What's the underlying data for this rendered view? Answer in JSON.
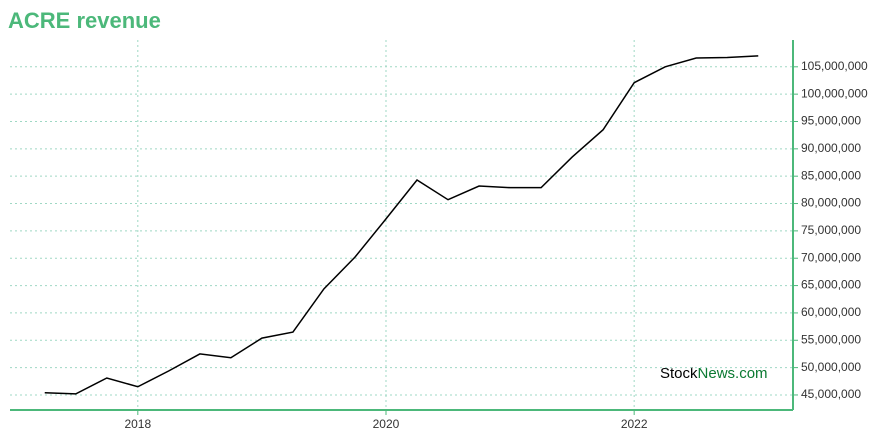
{
  "chart_data": {
    "type": "line",
    "title": "ACRE revenue",
    "watermark": [
      "Stock",
      "News.com"
    ],
    "x": [
      2017.25,
      2017.5,
      2017.75,
      2018,
      2018.25,
      2018.5,
      2018.75,
      2019,
      2019.25,
      2019.5,
      2019.75,
      2020,
      2020.25,
      2020.5,
      2020.75,
      2021,
      2021.25,
      2021.5,
      2021.75,
      2022,
      2022.25,
      2022.5,
      2022.75,
      2023
    ],
    "series": [
      {
        "color": "#000000",
        "values": [
          45400000,
          45200000,
          48100000,
          46500000,
          49400000,
          52500000,
          51800000,
          55400000,
          56500000,
          64400000,
          70200000,
          77200000,
          84300000,
          80700000,
          83200000,
          82900000,
          82900000,
          88500000,
          93500000,
          102100000,
          105000000,
          106600000,
          106700000,
          107000000
        ]
      }
    ],
    "xlim": [
      2016.97,
      2023.28
    ],
    "xticks": [
      2018,
      2020,
      2022
    ],
    "ylim": [
      42250000,
      109900000
    ],
    "yticks": [
      {
        "value": 45000000,
        "label": "45,000,000"
      },
      {
        "value": 50000000,
        "label": "50,000,000"
      },
      {
        "value": 55000000,
        "label": "55,000,000"
      },
      {
        "value": 60000000,
        "label": "60,000,000"
      },
      {
        "value": 65000000,
        "label": "65,000,000"
      },
      {
        "value": 70000000,
        "label": "70,000,000"
      },
      {
        "value": 75000000,
        "label": "75,000,000"
      },
      {
        "value": 80000000,
        "label": "80,000,000"
      },
      {
        "value": 85000000,
        "label": "85,000,000"
      },
      {
        "value": 90000000,
        "label": "90,000,000"
      },
      {
        "value": 95000000,
        "label": "95,000,000"
      },
      {
        "value": 100000000,
        "label": "100,000,000"
      },
      {
        "value": 105000000,
        "label": "105,000,000"
      }
    ],
    "grid": true,
    "axis_color": "#4cb87a",
    "title_color": "#4cb87a"
  }
}
